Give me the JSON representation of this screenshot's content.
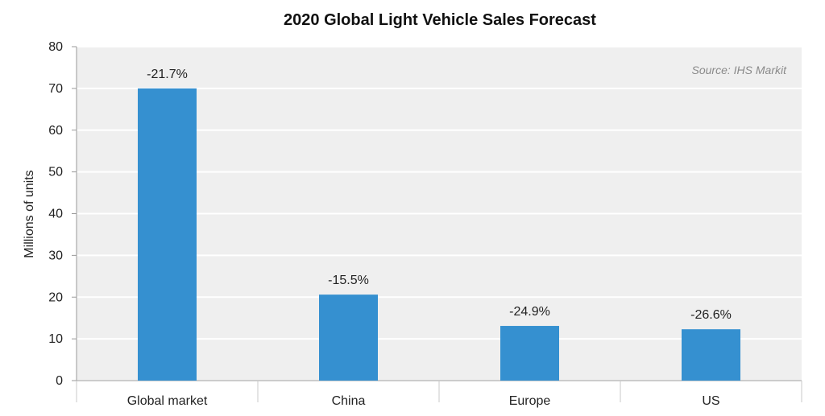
{
  "chart_data": {
    "type": "bar",
    "title": "2020 Global Light Vehicle Sales Forecast",
    "ylabel": "Millions of units",
    "xlabel": "",
    "source": "Source: IHS Markit",
    "categories": [
      "Global market",
      "China",
      "Europe",
      "US"
    ],
    "values": [
      70,
      20.6,
      13.1,
      12.3
    ],
    "data_labels": [
      "-21.7%",
      "-15.5%",
      "-24.9%",
      "-26.6%"
    ],
    "ylim": [
      0,
      80
    ],
    "yticks": [
      0,
      10,
      20,
      30,
      40,
      50,
      60,
      70,
      80
    ],
    "grid": true,
    "colors": {
      "bar": "#3590D0",
      "plot_background": "#EFEFEF",
      "grid": "#FFFFFF"
    }
  }
}
